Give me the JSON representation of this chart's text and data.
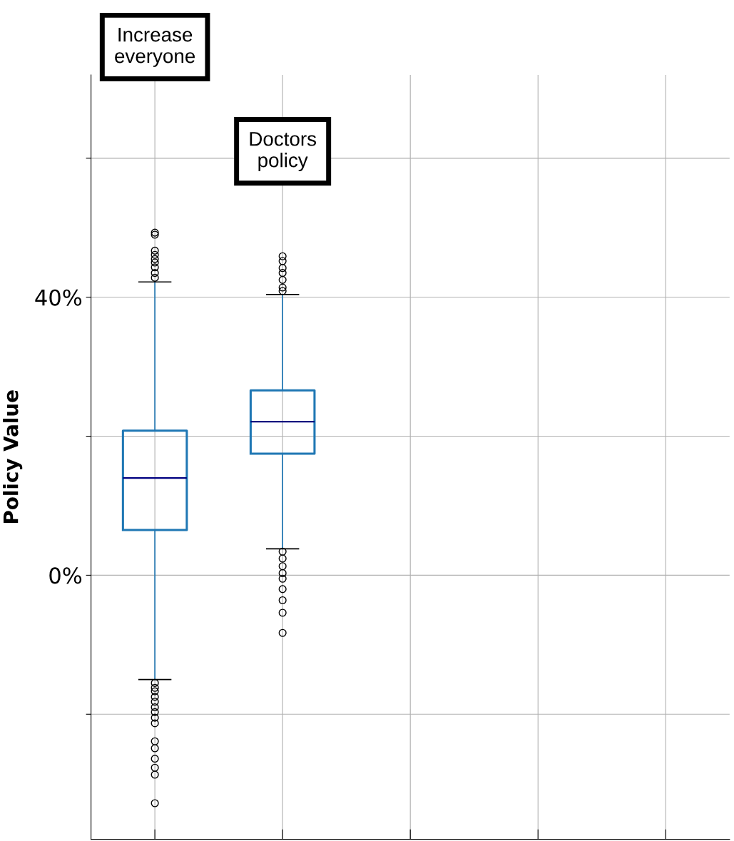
{
  "chart_data": {
    "type": "box",
    "ylabel": "Policy Value",
    "categories": [
      null,
      null,
      null,
      null,
      null
    ],
    "annotations": [
      "Increase everyone",
      "Doctors policy"
    ],
    "series": [
      {
        "color": "#1f77b4",
        "boxes": [
          {
            "low": -15.0,
            "q1": 6.5,
            "median": 14.0,
            "q3": 20.8,
            "high": 42.2,
            "outliers": [
              49.3,
              49.0,
              46.7,
              46.1,
              45.5,
              45.0,
              44.3,
              43.5,
              42.8,
              -15.5,
              -16.2,
              -16.7,
              -17.5,
              -18.2,
              -19.0,
              -19.7,
              -20.5,
              -21.3,
              -23.9,
              -24.9,
              -26.4,
              -27.7,
              -28.7,
              -32.8
            ]
          },
          {
            "low": 3.8,
            "q1": 17.5,
            "median": 22.1,
            "q3": 26.6,
            "high": 40.4,
            "outliers": [
              45.9,
              45.2,
              44.2,
              43.5,
              42.5,
              41.4,
              40.9,
              3.4,
              2.4,
              1.3,
              0.3,
              -0.5,
              -2.0,
              -3.6,
              -5.4,
              -8.3
            ]
          },
          null,
          null,
          null
        ]
      }
    ],
    "ylim": [
      -38,
      72
    ],
    "yticks": [
      {
        "value": 60,
        "label": null
      },
      {
        "value": 40,
        "label": "40%"
      },
      {
        "value": 20,
        "label": null
      },
      {
        "value": 0,
        "label": "0%"
      },
      {
        "value": -20,
        "label": null
      }
    ],
    "grid": true
  }
}
